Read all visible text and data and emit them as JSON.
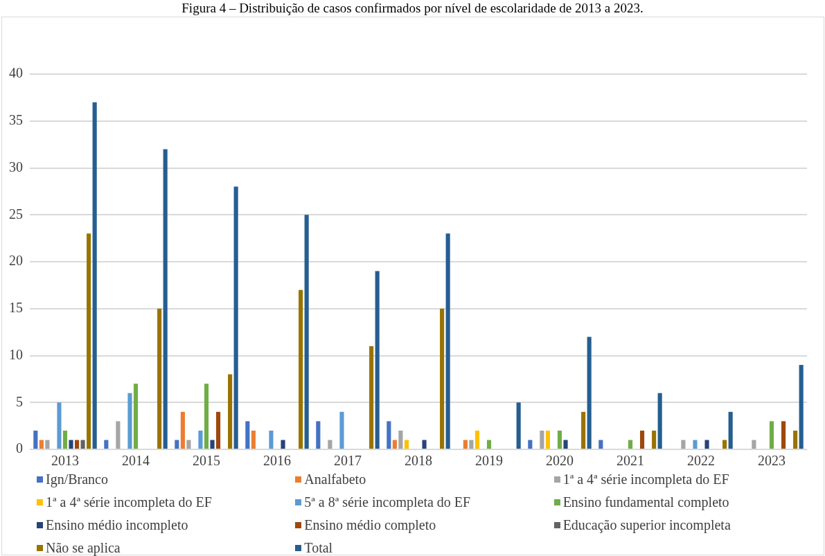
{
  "chart_data": {
    "type": "bar",
    "title": "Figura 4 – Distribuição de casos confirmados por nível de escolaridade de 2013 a 2023.",
    "categories": [
      "2013",
      "2014",
      "2015",
      "2016",
      "2017",
      "2018",
      "2019",
      "2020",
      "2021",
      "2022",
      "2023"
    ],
    "series": [
      {
        "name": "Ign/Branco",
        "color": "#4472c4",
        "values": [
          2,
          1,
          1,
          3,
          3,
          3,
          0,
          1,
          1,
          0,
          0
        ]
      },
      {
        "name": "Analfabeto",
        "color": "#ed7d31",
        "values": [
          1,
          0,
          4,
          2,
          0,
          1,
          1,
          0,
          0,
          0,
          0
        ]
      },
      {
        "name": "1ª a 4ª série incompleta do EF",
        "color": "#a5a5a5",
        "values": [
          1,
          3,
          1,
          0,
          1,
          2,
          1,
          2,
          0,
          1,
          1
        ]
      },
      {
        "name": "1ª a 4ª série incompleta do EF",
        "color": "#ffc000",
        "values": [
          0,
          0,
          0,
          0,
          0,
          1,
          2,
          2,
          0,
          0,
          0
        ]
      },
      {
        "name": "5ª a 8ª série incompleta do EF",
        "color": "#5b9bd5",
        "values": [
          5,
          6,
          2,
          2,
          4,
          0,
          0,
          0,
          0,
          1,
          0
        ]
      },
      {
        "name": "Ensino fundamental completo",
        "color": "#70ad47",
        "values": [
          2,
          7,
          7,
          0,
          0,
          0,
          1,
          2,
          1,
          0,
          3
        ]
      },
      {
        "name": "Ensino médio incompleto",
        "color": "#264478",
        "values": [
          1,
          0,
          1,
          1,
          0,
          1,
          0,
          1,
          0,
          1,
          0
        ]
      },
      {
        "name": "Ensino médio completo",
        "color": "#9e480e",
        "values": [
          1,
          0,
          4,
          0,
          0,
          0,
          0,
          0,
          2,
          0,
          3
        ]
      },
      {
        "name": "Educação superior incompleta",
        "color": "#636363",
        "values": [
          1,
          0,
          0,
          0,
          0,
          0,
          0,
          0,
          0,
          0,
          0
        ]
      },
      {
        "name": "Não se aplica",
        "color": "#997300",
        "values": [
          23,
          15,
          8,
          17,
          11,
          15,
          0,
          4,
          2,
          1,
          2
        ]
      },
      {
        "name": "Total",
        "color": "#255e91",
        "values": [
          37,
          32,
          28,
          25,
          19,
          23,
          5,
          12,
          6,
          4,
          9
        ]
      }
    ],
    "ylim": [
      0,
      40
    ],
    "yticks": [
      0,
      5,
      10,
      15,
      20,
      25,
      30,
      35,
      40
    ],
    "grid": "y",
    "legend": "bottom"
  }
}
